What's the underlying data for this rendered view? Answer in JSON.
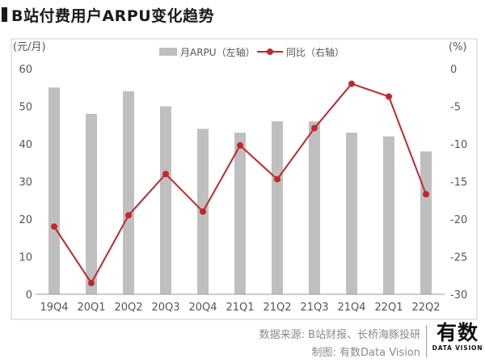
{
  "title": "B站付费用户ARPU变化趋势",
  "source_line1": "数据来源: B站财报、长桥海豚投研",
  "source_line2": "制图: 有数Data Vision",
  "brand": {
    "main": "有数",
    "sub": "DATA VISION"
  },
  "colors": {
    "bar": "#bfbfbf",
    "line": "#c0282d",
    "axis_text": "#555555",
    "frame": "#cccccc"
  },
  "chart_data": {
    "type": "bar+line",
    "categories": [
      "19Q4",
      "20Q1",
      "20Q2",
      "20Q3",
      "20Q4",
      "21Q1",
      "21Q2",
      "21Q3",
      "21Q4",
      "22Q1",
      "22Q2"
    ],
    "series": [
      {
        "name": "月ARPU（左轴）",
        "type": "bar",
        "axis": "left",
        "values": [
          55,
          48,
          54,
          50,
          44,
          43,
          46,
          46,
          43,
          42,
          38
        ]
      },
      {
        "name": "同比（右轴）",
        "type": "line",
        "axis": "right",
        "values": [
          -21,
          -28.5,
          -19.5,
          -14,
          -19,
          -10.2,
          -14.7,
          -7.9,
          -2,
          -3.7,
          -16.7
        ]
      }
    ],
    "left_axis": {
      "label": "(元/月)",
      "ylim": [
        0,
        60
      ],
      "ticks": [
        "0",
        "10",
        "20",
        "30",
        "40",
        "50",
        "60"
      ]
    },
    "right_axis": {
      "label": "(%)",
      "ylim": [
        -30,
        0
      ],
      "ticks": [
        "-30",
        "-25",
        "-20",
        "-15",
        "-10",
        "-5",
        "0"
      ]
    },
    "legend_placement": "top-center",
    "grid": false
  }
}
